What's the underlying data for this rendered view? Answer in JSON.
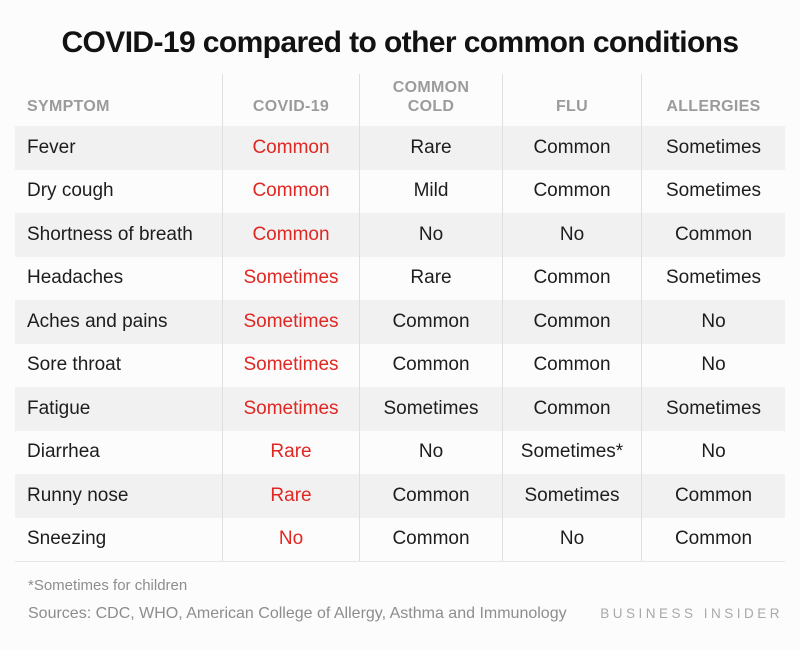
{
  "chart_data": {
    "type": "table",
    "title": "COVID-19 compared to other common conditions",
    "columns": [
      "SYMPTOM",
      "COVID-19",
      "COMMON COLD",
      "FLU",
      "ALLERGIES"
    ],
    "rows": [
      [
        "Fever",
        "Common",
        "Rare",
        "Common",
        "Sometimes"
      ],
      [
        "Dry cough",
        "Common",
        "Mild",
        "Common",
        "Sometimes"
      ],
      [
        "Shortness of breath",
        "Common",
        "No",
        "No",
        "Common"
      ],
      [
        "Headaches",
        "Sometimes",
        "Rare",
        "Common",
        "Sometimes"
      ],
      [
        "Aches and pains",
        "Sometimes",
        "Common",
        "Common",
        "No"
      ],
      [
        "Sore throat",
        "Sometimes",
        "Common",
        "Common",
        "No"
      ],
      [
        "Fatigue",
        "Sometimes",
        "Sometimes",
        "Common",
        "Sometimes"
      ],
      [
        "Diarrhea",
        "Rare",
        "No",
        "Sometimes*",
        "No"
      ],
      [
        "Runny nose",
        "Rare",
        "Common",
        "Sometimes",
        "Common"
      ],
      [
        "Sneezing",
        "No",
        "Common",
        "No",
        "Common"
      ]
    ],
    "highlight_column": "COVID-19",
    "striped_rows": "odd",
    "legend_position": "none",
    "footnote": "*Sometimes for children",
    "sources": "Sources: CDC, WHO,  American College of Allergy, Asthma and Immunology"
  },
  "branding": {
    "logo_text": "BUSINESS INSIDER"
  },
  "colors": {
    "accent_red": "#e02722",
    "header_gray": "#9b9b9b",
    "row_stripe": "#f1f1f2",
    "divider": "#dfdfdf",
    "body_text": "#1d1d1f",
    "muted_text": "#8d8d8d",
    "logo_gray": "#a9a9a9",
    "background": "#fcfcfc"
  }
}
